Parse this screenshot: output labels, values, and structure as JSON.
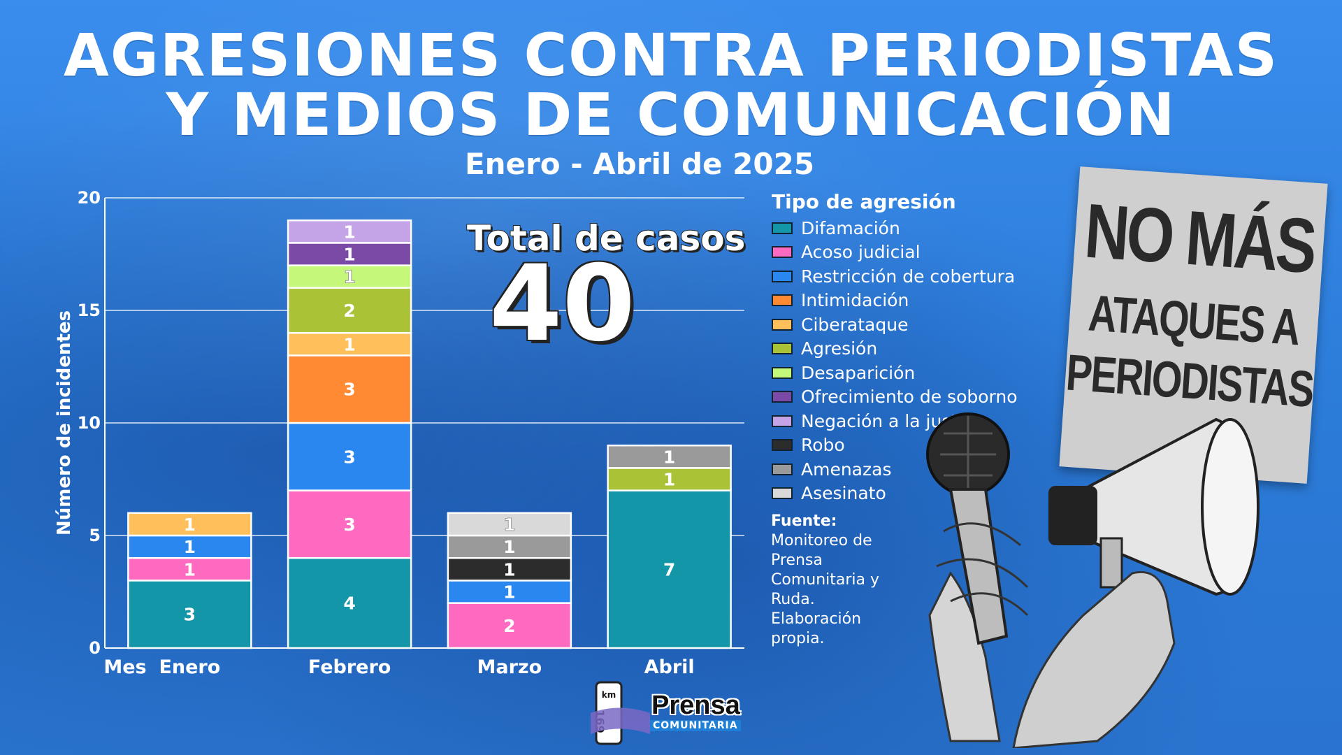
{
  "header": {
    "title_line1": "AGRESIONES CONTRA PERIODISTAS",
    "title_line2": "Y MEDIOS DE COMUNICACIÓN",
    "subtitle": "Enero - Abril de 2025"
  },
  "total": {
    "label": "Total de casos",
    "value": "40"
  },
  "legend": {
    "title": "Tipo de agresión",
    "items": [
      {
        "name": "Difamación",
        "color": "#1397a8"
      },
      {
        "name": "Acoso judicial",
        "color": "#ff6ac1"
      },
      {
        "name": "Restricción de cobertura",
        "color": "#2a87f0"
      },
      {
        "name": "Intimidación",
        "color": "#ff8a33"
      },
      {
        "name": "Ciberataque",
        "color": "#ffbf5a"
      },
      {
        "name": "Agresión",
        "color": "#a9c236"
      },
      {
        "name": "Desaparición",
        "color": "#c5f77a"
      },
      {
        "name": "Ofrecimiento de soborno",
        "color": "#7b4aa6"
      },
      {
        "name": "Negación a la justicia",
        "color": "#c4a3e6"
      },
      {
        "name": "Robo",
        "color": "#2c2c2c"
      },
      {
        "name": "Amenazas",
        "color": "#9a9a9a"
      },
      {
        "name": "Asesinato",
        "color": "#d9d9d9"
      }
    ]
  },
  "source": {
    "title": "Fuente:",
    "text": "Monitoreo de Prensa Comunitaria y Ruda. Elaboración propia."
  },
  "sign": {
    "line1": "NO MÁS",
    "line2": "ATAQUES A",
    "line3": "PERIODISTAS"
  },
  "logo": {
    "km": "km",
    "number": "169",
    "name": "Prensa",
    "sub": "COMUNITARIA"
  },
  "chart_data": {
    "type": "bar",
    "stacked": true,
    "title": "AGRESIONES CONTRA PERIODISTAS Y MEDIOS DE COMUNICACIÓN",
    "subtitle": "Enero - Abril de 2025",
    "xlabel": "Mes",
    "ylabel": "Número de incidentes",
    "ylim": [
      0,
      20
    ],
    "yticks": [
      0,
      5,
      10,
      15,
      20
    ],
    "grid": true,
    "legend_position": "right",
    "categories": [
      "Enero",
      "Febrero",
      "Marzo",
      "Abril"
    ],
    "series": [
      {
        "name": "Difamación",
        "values": [
          3,
          4,
          0,
          7
        ]
      },
      {
        "name": "Acoso judicial",
        "values": [
          1,
          3,
          2,
          0
        ]
      },
      {
        "name": "Restricción de cobertura",
        "values": [
          1,
          3,
          1,
          0
        ]
      },
      {
        "name": "Intimidación",
        "values": [
          0,
          3,
          0,
          0
        ]
      },
      {
        "name": "Ciberataque",
        "values": [
          1,
          1,
          0,
          0
        ]
      },
      {
        "name": "Agresión",
        "values": [
          0,
          2,
          0,
          1
        ]
      },
      {
        "name": "Desaparición",
        "values": [
          0,
          1,
          0,
          0
        ]
      },
      {
        "name": "Ofrecimiento de soborno",
        "values": [
          0,
          1,
          0,
          0
        ]
      },
      {
        "name": "Negación a la justicia",
        "values": [
          0,
          1,
          0,
          0
        ]
      },
      {
        "name": "Robo",
        "values": [
          0,
          0,
          1,
          0
        ]
      },
      {
        "name": "Amenazas",
        "values": [
          0,
          0,
          1,
          1
        ]
      },
      {
        "name": "Asesinato",
        "values": [
          0,
          0,
          1,
          0
        ]
      }
    ]
  }
}
